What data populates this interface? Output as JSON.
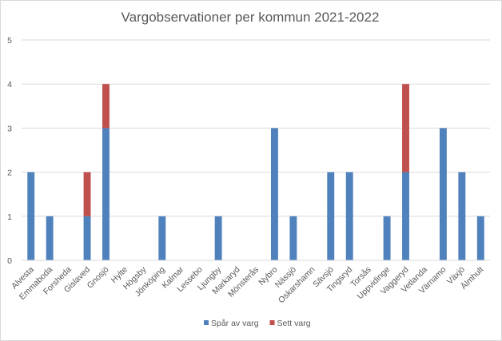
{
  "chart_data": {
    "type": "bar",
    "stacked": true,
    "title": "Vargobservationer per kommun 2021-2022",
    "xlabel": "",
    "ylabel": "",
    "ylim": [
      0,
      5
    ],
    "yticks": [
      "0",
      "1",
      "2",
      "3",
      "4",
      "5"
    ],
    "grid": true,
    "legend_position": "bottom",
    "categories": [
      "Alvesta",
      "Emmaboda",
      "Forsheda",
      "Gislaved",
      "Gnosjö",
      "Hylte",
      "Högsby",
      "Jönköping",
      "Kalmar",
      "Lessebo",
      "Ljungby",
      "Markaryd",
      "Mönsterås",
      "Nybro",
      "Nässjö",
      "Oskarshamn",
      "Sävsjö",
      "Tingsryd",
      "Torsås",
      "Uppvidinge",
      "Vaggeryd",
      "Vetlanda",
      "Värnamo",
      "Växjö",
      "Älmhult"
    ],
    "series": [
      {
        "name": "Spår av varg",
        "color": "#4f81bd",
        "values": [
          2,
          1,
          0,
          1,
          3,
          0,
          0,
          1,
          0,
          0,
          1,
          0,
          0,
          3,
          1,
          0,
          2,
          2,
          0,
          1,
          2,
          0,
          3,
          2,
          1
        ]
      },
      {
        "name": "Sett varg",
        "color": "#c0504d",
        "values": [
          0,
          0,
          0,
          1,
          1,
          0,
          0,
          0,
          0,
          0,
          0,
          0,
          0,
          0,
          0,
          0,
          0,
          0,
          0,
          0,
          2,
          0,
          0,
          0,
          0
        ]
      }
    ]
  }
}
